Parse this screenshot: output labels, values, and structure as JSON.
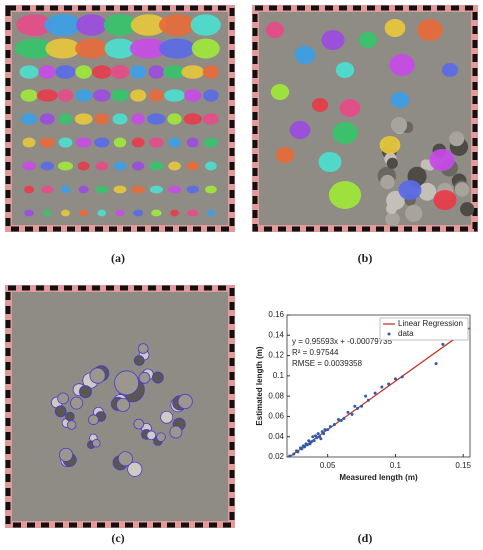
{
  "panels": [
    {
      "label": "(a)"
    },
    {
      "label": "(b)"
    },
    {
      "label": "(c)"
    },
    {
      "label": "(d)"
    }
  ],
  "chart_data": {
    "type": "scatter",
    "xlabel": "Measured length (m)",
    "ylabel": "Estimated length (m)",
    "xlim": [
      0.02,
      0.155
    ],
    "ylim": [
      0.02,
      0.16
    ],
    "xticks": [
      0.05,
      0.1,
      0.15
    ],
    "yticks": [
      0.02,
      0.04,
      0.06,
      0.08,
      0.1,
      0.12,
      0.14,
      0.16
    ],
    "legend": "upper right",
    "fit": {
      "name": "Linear Regression",
      "color": "#c8342b",
      "slope": 0.95593,
      "intercept": -0.00079735
    },
    "annotations": [
      "y = 0.95593x + -0.00079735",
      "R² = 0.97544",
      "RMSE = 0.0039358"
    ],
    "series": [
      {
        "name": "data",
        "color": "#2b5cb0",
        "x": [
          0.022,
          0.025,
          0.027,
          0.028,
          0.03,
          0.031,
          0.032,
          0.033,
          0.034,
          0.035,
          0.036,
          0.037,
          0.038,
          0.039,
          0.04,
          0.041,
          0.042,
          0.043,
          0.044,
          0.045,
          0.046,
          0.047,
          0.048,
          0.05,
          0.052,
          0.055,
          0.058,
          0.06,
          0.062,
          0.065,
          0.068,
          0.07,
          0.072,
          0.075,
          0.078,
          0.08,
          0.085,
          0.09,
          0.095,
          0.1,
          0.105,
          0.13,
          0.135
        ],
        "values": [
          0.021,
          0.023,
          0.026,
          0.025,
          0.029,
          0.028,
          0.031,
          0.03,
          0.033,
          0.032,
          0.036,
          0.033,
          0.035,
          0.04,
          0.036,
          0.041,
          0.039,
          0.043,
          0.04,
          0.038,
          0.045,
          0.043,
          0.047,
          0.047,
          0.05,
          0.052,
          0.057,
          0.056,
          0.058,
          0.064,
          0.062,
          0.07,
          0.068,
          0.07,
          0.08,
          0.076,
          0.083,
          0.089,
          0.092,
          0.097,
          0.099,
          0.112,
          0.131
        ]
      }
    ]
  }
}
